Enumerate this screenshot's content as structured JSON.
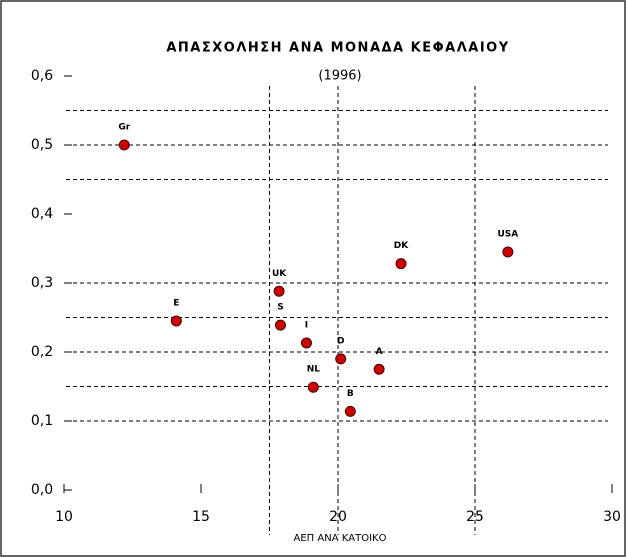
{
  "chart_data": {
    "type": "scatter",
    "title": "ΑΠΑΣΧΟΛΗΣΗ ΑΝΑ ΜΟΝΑΔΑ ΚΕΦΑΛΑΙΟΥ",
    "subtitle": "(1996)",
    "x_label": "ΑΕΠ ΑΝΑ ΚΑΤΟΙΚΟ",
    "point_labels": [
      "Gr",
      "E",
      "UK",
      "S",
      "I",
      "NL",
      "D",
      "B",
      "A",
      "DK",
      "USA"
    ],
    "x": [
      12.2,
      14.1,
      17.85,
      17.9,
      18.85,
      19.1,
      20.1,
      20.45,
      21.5,
      22.3,
      26.2
    ],
    "values": [
      0.5,
      0.245,
      0.288,
      0.239,
      0.213,
      0.149,
      0.19,
      0.114,
      0.175,
      0.328,
      0.345
    ],
    "color": "#cc0000",
    "xlim": [
      10,
      30
    ],
    "xticks": [
      10,
      15,
      20,
      25,
      30
    ],
    "ylim": [
      0,
      0.6
    ],
    "yticks": [
      {
        "value": 0,
        "label": "0,0"
      },
      {
        "value": 0.1,
        "label": "0,1"
      },
      {
        "value": 0.2,
        "label": "0,2"
      },
      {
        "value": 0.3,
        "label": "0,3"
      },
      {
        "value": 0.4,
        "label": "0,4"
      },
      {
        "value": 0.5,
        "label": "0,5"
      },
      {
        "value": 0.6,
        "label": "0,6"
      }
    ],
    "hgrid": [
      0.1,
      0.15,
      0.2,
      0.25,
      0.3,
      0.45,
      0.5,
      0.55
    ],
    "vgrid": [
      17.5,
      20,
      25
    ]
  }
}
